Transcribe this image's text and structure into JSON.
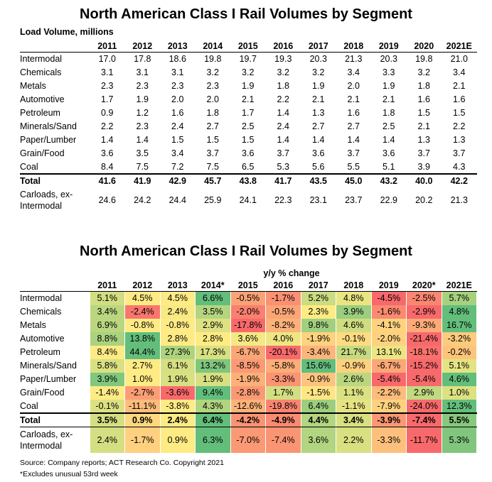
{
  "chart_data": [
    {
      "type": "table",
      "title": "North American Class I Rail Volumes by Segment",
      "subtitle": "Load Volume, millions",
      "columns": [
        "2011",
        "2012",
        "2013",
        "2014",
        "2015",
        "2016",
        "2017",
        "2018",
        "2019",
        "2020",
        "2021E"
      ],
      "rows": [
        {
          "label": "Intermodal",
          "values": [
            "17.0",
            "17.8",
            "18.6",
            "19.8",
            "19.7",
            "19.3",
            "20.3",
            "21.3",
            "20.3",
            "19.8",
            "21.0"
          ]
        },
        {
          "label": "Chemicals",
          "values": [
            "3.1",
            "3.1",
            "3.1",
            "3.2",
            "3.2",
            "3.2",
            "3.2",
            "3.4",
            "3.3",
            "3.2",
            "3.4"
          ]
        },
        {
          "label": "Metals",
          "values": [
            "2.3",
            "2.3",
            "2.3",
            "2.3",
            "1.9",
            "1.8",
            "1.9",
            "2.0",
            "1.9",
            "1.8",
            "2.1"
          ]
        },
        {
          "label": "Automotive",
          "values": [
            "1.7",
            "1.9",
            "2.0",
            "2.0",
            "2.1",
            "2.2",
            "2.1",
            "2.1",
            "2.1",
            "1.6",
            "1.6"
          ]
        },
        {
          "label": "Petroleum",
          "values": [
            "0.9",
            "1.2",
            "1.6",
            "1.8",
            "1.7",
            "1.4",
            "1.3",
            "1.6",
            "1.8",
            "1.5",
            "1.5"
          ]
        },
        {
          "label": "Minerals/Sand",
          "values": [
            "2.2",
            "2.3",
            "2.4",
            "2.7",
            "2.5",
            "2.4",
            "2.7",
            "2.7",
            "2.5",
            "2.1",
            "2.2"
          ]
        },
        {
          "label": "Paper/Lumber",
          "values": [
            "1.4",
            "1.4",
            "1.5",
            "1.5",
            "1.5",
            "1.4",
            "1.4",
            "1.4",
            "1.4",
            "1.3",
            "1.3"
          ]
        },
        {
          "label": "Grain/Food",
          "values": [
            "3.6",
            "3.5",
            "3.4",
            "3.7",
            "3.6",
            "3.7",
            "3.6",
            "3.7",
            "3.6",
            "3.7",
            "3.7"
          ]
        },
        {
          "label": "Coal",
          "values": [
            "8.4",
            "7.5",
            "7.2",
            "7.5",
            "6.5",
            "5.3",
            "5.6",
            "5.5",
            "5.1",
            "3.9",
            "4.3"
          ]
        }
      ],
      "total": {
        "label": "Total",
        "values": [
          "41.6",
          "41.9",
          "42.9",
          "45.7",
          "43.8",
          "41.7",
          "43.5",
          "45.0",
          "43.2",
          "40.0",
          "42.2"
        ]
      },
      "carloads": {
        "label_line1": "Carloads, ex-",
        "label_line2": "Intermodal",
        "values": [
          "24.6",
          "24.2",
          "24.4",
          "25.9",
          "24.1",
          "22.3",
          "23.1",
          "23.7",
          "22.9",
          "20.2",
          "21.3"
        ]
      }
    },
    {
      "type": "heatmap",
      "title": "North American Class I Rail Volumes by Segment",
      "subtitle": "y/y % change",
      "columns": [
        "2011",
        "2012",
        "2013",
        "2014*",
        "2015",
        "2016",
        "2017",
        "2018",
        "2019",
        "2020*",
        "2021E"
      ],
      "rows": [
        {
          "label": "Intermodal",
          "values": [
            5.1,
            4.5,
            4.5,
            6.6,
            -0.5,
            -1.7,
            5.2,
            4.8,
            -4.5,
            -2.5,
            5.7
          ]
        },
        {
          "label": "Chemicals",
          "values": [
            3.4,
            -2.4,
            2.4,
            3.5,
            -2.0,
            -0.5,
            2.3,
            3.9,
            -1.6,
            -2.9,
            4.8
          ]
        },
        {
          "label": "Metals",
          "values": [
            6.9,
            -0.8,
            -0.8,
            2.9,
            -17.8,
            -8.2,
            9.8,
            4.6,
            -4.1,
            -9.3,
            16.7
          ]
        },
        {
          "label": "Automotive",
          "values": [
            8.8,
            13.8,
            2.8,
            2.8,
            3.6,
            4.0,
            -1.9,
            -0.1,
            -2.0,
            -21.4,
            -3.2
          ]
        },
        {
          "label": "Petroleum",
          "values": [
            8.4,
            44.4,
            27.3,
            17.3,
            -6.7,
            -20.1,
            -3.4,
            21.7,
            13.1,
            -18.1,
            -0.2
          ]
        },
        {
          "label": "Minerals/Sand",
          "values": [
            5.8,
            2.7,
            6.1,
            13.2,
            -8.5,
            -5.8,
            15.6,
            -0.9,
            -6.7,
            -15.2,
            5.1
          ]
        },
        {
          "label": "Paper/Lumber",
          "values": [
            3.9,
            1.0,
            1.9,
            1.9,
            -1.9,
            -3.3,
            -0.9,
            2.6,
            -5.4,
            -5.4,
            4.6
          ]
        },
        {
          "label": "Grain/Food",
          "values": [
            -1.4,
            -2.7,
            -3.6,
            9.4,
            -2.8,
            1.7,
            -1.5,
            1.1,
            -2.2,
            2.9,
            1.0
          ]
        },
        {
          "label": "Coal",
          "values": [
            -0.1,
            -11.1,
            -3.8,
            4.3,
            -12.6,
            -19.8,
            6.4,
            -1.1,
            -7.9,
            -24.0,
            12.3
          ]
        }
      ],
      "total": {
        "label": "Total",
        "values": [
          3.5,
          0.9,
          2.4,
          6.4,
          -4.2,
          -4.9,
          4.4,
          3.4,
          -3.9,
          -7.4,
          5.5
        ]
      },
      "carloads": {
        "label_line1": "Carloads, ex-",
        "label_line2": "Intermodal",
        "values": [
          2.4,
          -1.7,
          0.9,
          6.3,
          -7.0,
          -7.4,
          3.6,
          2.2,
          -3.3,
          -11.7,
          5.3
        ]
      },
      "colors": {
        "high": "#63be7b",
        "mid": "#ffeb84",
        "low": "#f8696b"
      }
    }
  ],
  "footer": {
    "source": "Source: Company reports; ACT Research Co. Copyright 2021",
    "note": "*Excludes unusual 53rd week"
  }
}
